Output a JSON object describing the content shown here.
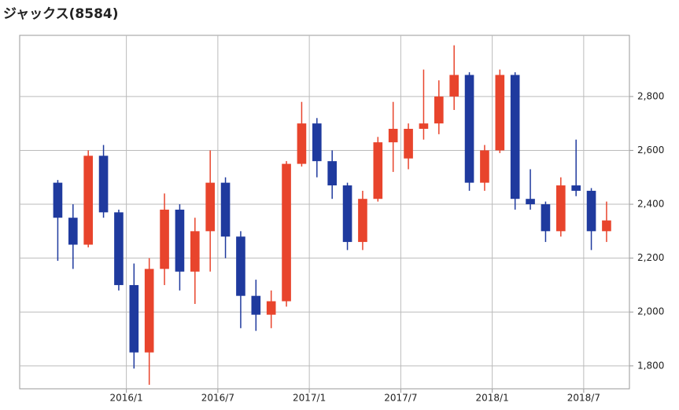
{
  "chart_data": {
    "type": "candlestick",
    "title": "ジャックス(8584)",
    "x": [
      "2015/8",
      "2015/9",
      "2015/10",
      "2015/11",
      "2015/12",
      "2016/1",
      "2016/2",
      "2016/3",
      "2016/4",
      "2016/5",
      "2016/6",
      "2016/7",
      "2016/8",
      "2016/9",
      "2016/10",
      "2016/11",
      "2016/12",
      "2017/1",
      "2017/2",
      "2017/3",
      "2017/4",
      "2017/5",
      "2017/6",
      "2017/7",
      "2017/8",
      "2017/9",
      "2017/10",
      "2017/11",
      "2017/12",
      "2018/1",
      "2018/2",
      "2018/3",
      "2018/4",
      "2018/5",
      "2018/6",
      "2018/7",
      "2018/8"
    ],
    "open": [
      2480,
      2350,
      2250,
      2580,
      2370,
      2100,
      1850,
      2160,
      2380,
      2150,
      2300,
      2480,
      2280,
      2060,
      1990,
      2040,
      2550,
      2700,
      2560,
      2470,
      2260,
      2420,
      2630,
      2570,
      2680,
      2700,
      2800,
      2880,
      2480,
      2600,
      2880,
      2420,
      2400,
      2300,
      2470,
      2450,
      2300
    ],
    "high": [
      2490,
      2400,
      2600,
      2620,
      2380,
      2180,
      2200,
      2440,
      2400,
      2350,
      2600,
      2500,
      2300,
      2120,
      2080,
      2560,
      2780,
      2720,
      2600,
      2480,
      2450,
      2650,
      2780,
      2700,
      2900,
      2860,
      2990,
      2890,
      2620,
      2900,
      2890,
      2530,
      2410,
      2500,
      2640,
      2460,
      2410
    ],
    "low": [
      2190,
      2160,
      2240,
      2350,
      2080,
      1790,
      1730,
      2100,
      2080,
      2030,
      2150,
      2200,
      1940,
      1930,
      1940,
      2020,
      2540,
      2500,
      2420,
      2230,
      2230,
      2410,
      2520,
      2530,
      2640,
      2660,
      2750,
      2450,
      2450,
      2590,
      2380,
      2380,
      2260,
      2280,
      2430,
      2230,
      2260
    ],
    "close": [
      2350,
      2250,
      2580,
      2370,
      2100,
      1850,
      2160,
      2380,
      2150,
      2300,
      2480,
      2280,
      2060,
      1990,
      2040,
      2550,
      2700,
      2560,
      2470,
      2260,
      2420,
      2630,
      2680,
      2680,
      2700,
      2800,
      2880,
      2480,
      2600,
      2880,
      2420,
      2400,
      2300,
      2470,
      2450,
      2300,
      2340
    ],
    "up_color": "#e8442c",
    "down_color": "#1f3a9e",
    "xlim": [
      "2015/6",
      "2018/10"
    ],
    "xticks": [
      "2016/1",
      "2016/7",
      "2017/1",
      "2017/7",
      "2018/1",
      "2018/7"
    ],
    "ylim": [
      1715,
      3027
    ],
    "yticks": [
      {
        "value": 1800,
        "label": "1,800"
      },
      {
        "value": 2000,
        "label": "2,000"
      },
      {
        "value": 2200,
        "label": "2,200"
      },
      {
        "value": 2400,
        "label": "2,400"
      },
      {
        "value": 2600,
        "label": "2,600"
      },
      {
        "value": 2800,
        "label": "2,800"
      }
    ],
    "grid": true
  }
}
